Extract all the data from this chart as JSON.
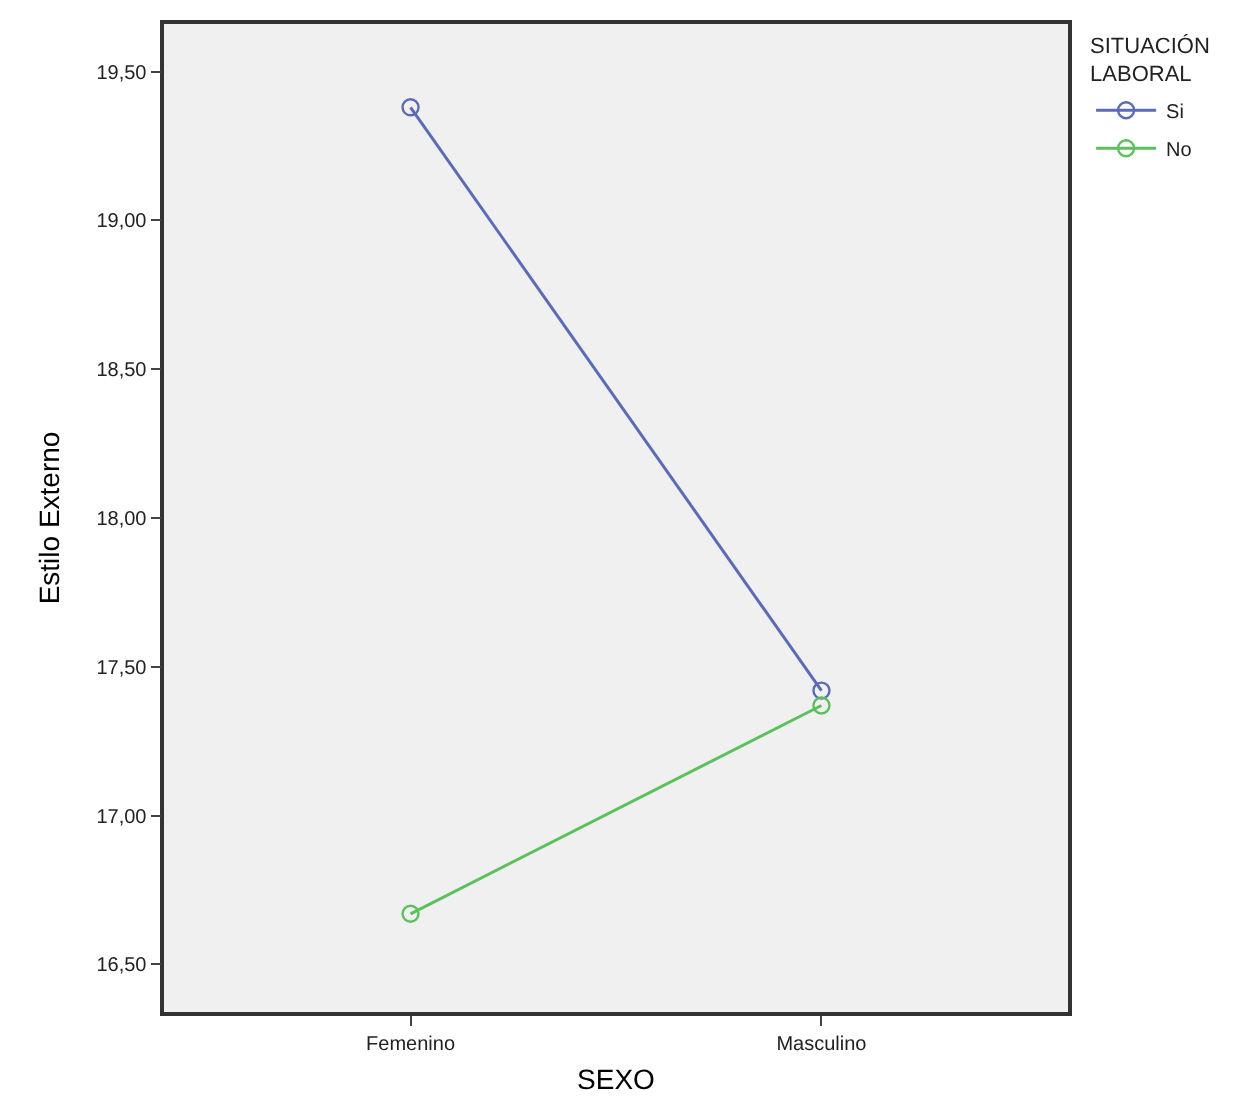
{
  "chart_data": {
    "type": "line",
    "xlabel": "SEXO",
    "ylabel": "Estilo Externo",
    "legend_title": "SITUACIÓN\nLABORAL",
    "categories": [
      "Femenino",
      "Masculino"
    ],
    "series": [
      {
        "name": "Si",
        "color": "#5b6bb5",
        "values": [
          19.38,
          17.42
        ]
      },
      {
        "name": "No",
        "color": "#5cc05c",
        "values": [
          16.67,
          17.37
        ]
      }
    ],
    "ylim": [
      16.34,
      19.66
    ],
    "yticks": [
      {
        "value": 16.5,
        "label": "16,50"
      },
      {
        "value": 17,
        "label": "17,00"
      },
      {
        "value": 17.5,
        "label": "17,50"
      },
      {
        "value": 18,
        "label": "18,00"
      },
      {
        "value": 18.5,
        "label": "18,50"
      },
      {
        "value": 19,
        "label": "19,00"
      },
      {
        "value": 19.5,
        "label": "19,50"
      }
    ],
    "marker": "circle",
    "line_style": "solid",
    "legend": "top right",
    "grid": false
  }
}
